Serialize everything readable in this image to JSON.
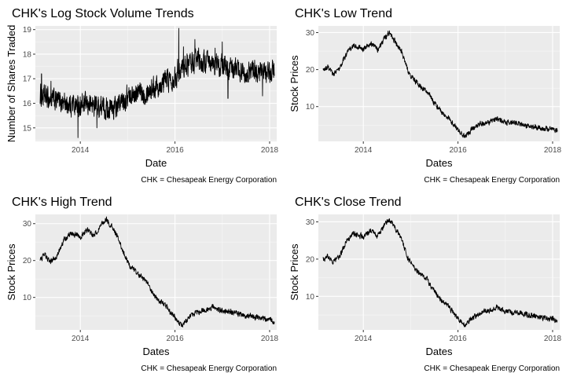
{
  "chart_data": [
    {
      "type": "line",
      "title": "CHK's Log Stock Volume Trends",
      "xlabel": "Date",
      "ylabel": "Number of Shares Traded",
      "caption": "CHK = Chesapeak Energy Corporation",
      "xlim": [
        2013.05,
        2018.15
      ],
      "ylim": [
        14.45,
        19.15
      ],
      "x_ticks": [
        2014,
        2016,
        2018
      ],
      "x_tick_labels": [
        "2014",
        "2016",
        "2018"
      ],
      "y_ticks": [
        15,
        16,
        17,
        18,
        19
      ],
      "y_tick_labels": [
        "15",
        "16",
        "17",
        "18",
        "19"
      ],
      "grid": true,
      "series": [
        {
          "name": "log volume",
          "x": [
            2013.15,
            2013.3,
            2013.5,
            2013.75,
            2014.0,
            2014.25,
            2014.5,
            2014.75,
            2015.0,
            2015.25,
            2015.5,
            2015.75,
            2016.0,
            2016.1,
            2016.25,
            2016.5,
            2016.75,
            2017.0,
            2017.25,
            2017.5,
            2017.75,
            2018.0,
            2018.1
          ],
          "y": [
            16.3,
            16.2,
            16.1,
            16.0,
            15.9,
            15.95,
            15.8,
            15.8,
            16.3,
            16.4,
            16.6,
            16.9,
            17.1,
            17.4,
            17.6,
            17.7,
            17.6,
            17.5,
            17.4,
            17.3,
            17.3,
            17.2,
            17.4
          ],
          "noise": 0.38,
          "spikes": [
            [
              2013.18,
              17.2
            ],
            [
              2013.38,
              16.9
            ],
            [
              2013.72,
              15.6
            ],
            [
              2013.95,
              14.6
            ],
            [
              2014.35,
              15.0
            ],
            [
              2014.62,
              15.4
            ],
            [
              2015.75,
              17.2
            ],
            [
              2016.08,
              19.05
            ],
            [
              2016.18,
              18.3
            ],
            [
              2016.42,
              18.6
            ],
            [
              2016.85,
              18.25
            ],
            [
              2017.0,
              18.5
            ],
            [
              2017.12,
              16.2
            ],
            [
              2017.85,
              16.3
            ],
            [
              2018.12,
              18.1
            ]
          ]
        }
      ]
    },
    {
      "type": "line",
      "title": "CHK's Low Trend",
      "xlabel": "Dates",
      "ylabel": "Stock Prices",
      "caption": "CHK = Chesapeak Energy Corporation",
      "xlim": [
        2013.05,
        2018.15
      ],
      "ylim": [
        0.6,
        31.8
      ],
      "x_ticks": [
        2014,
        2016,
        2018
      ],
      "x_tick_labels": [
        "2014",
        "2016",
        "2018"
      ],
      "y_ticks": [
        10,
        20,
        30
      ],
      "y_tick_labels": [
        "10",
        "20",
        "30"
      ],
      "grid": true,
      "series": [
        {
          "name": "Low",
          "x": [
            2013.15,
            2013.25,
            2013.35,
            2013.5,
            2013.65,
            2013.8,
            2014.0,
            2014.15,
            2014.3,
            2014.45,
            2014.55,
            2014.7,
            2014.8,
            2014.95,
            2015.05,
            2015.2,
            2015.35,
            2015.5,
            2015.65,
            2015.8,
            2015.95,
            2016.05,
            2016.15,
            2016.3,
            2016.5,
            2016.7,
            2016.8,
            2017.0,
            2017.2,
            2017.4,
            2017.6,
            2017.8,
            2018.0,
            2018.1
          ],
          "y": [
            19.8,
            20.5,
            18.8,
            20.2,
            24.5,
            26.5,
            25.5,
            27.0,
            25.5,
            28.5,
            30.0,
            27.0,
            25.0,
            19.5,
            17.5,
            15.5,
            14.0,
            11.0,
            8.5,
            7.0,
            4.5,
            2.8,
            2.0,
            4.0,
            5.5,
            6.0,
            6.8,
            5.8,
            5.5,
            5.0,
            4.6,
            4.0,
            3.9,
            3.2
          ],
          "noise": 0.6,
          "spikes": []
        }
      ]
    },
    {
      "type": "line",
      "title": "CHK's High Trend",
      "xlabel": "Dates",
      "ylabel": "Stock Prices",
      "caption": "CHK = Chesapeak Energy Corporation",
      "xlim": [
        2013.05,
        2018.15
      ],
      "ylim": [
        1.2,
        32.5
      ],
      "x_ticks": [
        2014,
        2016,
        2018
      ],
      "x_tick_labels": [
        "2014",
        "2016",
        "2018"
      ],
      "y_ticks": [
        10,
        20,
        30
      ],
      "y_tick_labels": [
        "10",
        "20",
        "30"
      ],
      "grid": true,
      "series": [
        {
          "name": "High",
          "x": [
            2013.15,
            2013.25,
            2013.35,
            2013.5,
            2013.65,
            2013.8,
            2014.0,
            2014.15,
            2014.3,
            2014.45,
            2014.55,
            2014.7,
            2014.8,
            2014.95,
            2015.05,
            2015.2,
            2015.35,
            2015.5,
            2015.65,
            2015.8,
            2015.95,
            2016.05,
            2016.15,
            2016.3,
            2016.5,
            2016.7,
            2016.8,
            2017.0,
            2017.2,
            2017.4,
            2017.6,
            2017.8,
            2018.0,
            2018.1
          ],
          "y": [
            20.3,
            21.5,
            19.6,
            21.0,
            25.5,
            27.5,
            26.5,
            28.2,
            26.8,
            29.8,
            31.2,
            28.5,
            26.0,
            20.8,
            18.5,
            16.5,
            15.0,
            12.0,
            9.2,
            7.8,
            5.2,
            3.4,
            2.4,
            4.6,
            6.2,
            6.6,
            7.5,
            6.3,
            6.0,
            5.4,
            4.9,
            4.3,
            4.2,
            3.5
          ],
          "noise": 0.6,
          "spikes": []
        }
      ]
    },
    {
      "type": "line",
      "title": "CHK's Close Trend",
      "xlabel": "Dates",
      "ylabel": "Stock Prices",
      "caption": "CHK = Chesapeak Energy Corporation",
      "xlim": [
        2013.05,
        2018.15
      ],
      "ylim": [
        1.0,
        32.0
      ],
      "x_ticks": [
        2014,
        2016,
        2018
      ],
      "x_tick_labels": [
        "2014",
        "2016",
        "2018"
      ],
      "y_ticks": [
        10,
        20,
        30
      ],
      "y_tick_labels": [
        "10",
        "20",
        "30"
      ],
      "grid": true,
      "series": [
        {
          "name": "Close",
          "x": [
            2013.15,
            2013.25,
            2013.35,
            2013.5,
            2013.65,
            2013.8,
            2014.0,
            2014.15,
            2014.3,
            2014.45,
            2014.55,
            2014.7,
            2014.8,
            2014.95,
            2015.05,
            2015.2,
            2015.35,
            2015.5,
            2015.65,
            2015.8,
            2015.95,
            2016.05,
            2016.15,
            2016.3,
            2016.5,
            2016.7,
            2016.8,
            2017.0,
            2017.2,
            2017.4,
            2017.6,
            2017.8,
            2018.0,
            2018.1
          ],
          "y": [
            20.0,
            21.0,
            19.2,
            20.6,
            25.0,
            27.0,
            26.0,
            27.6,
            26.1,
            29.1,
            30.6,
            27.8,
            25.5,
            20.1,
            18.0,
            16.0,
            14.5,
            11.5,
            8.8,
            7.4,
            4.8,
            3.1,
            2.2,
            4.3,
            5.8,
            6.3,
            7.1,
            6.0,
            5.7,
            5.2,
            4.7,
            4.1,
            4.0,
            3.3
          ],
          "noise": 0.6,
          "spikes": []
        }
      ]
    }
  ]
}
